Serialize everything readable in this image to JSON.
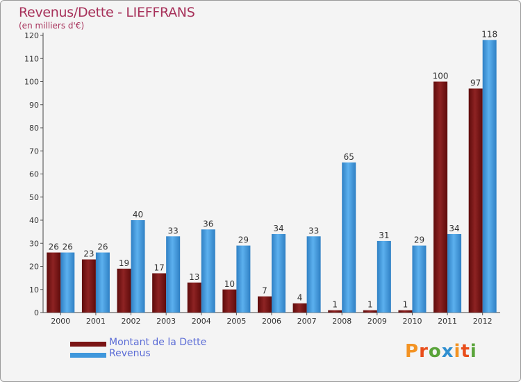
{
  "chart_data": {
    "type": "bar",
    "title": "Revenus/Dette - LIEFFRANS",
    "subtitle": "(en milliers d'€)",
    "categories": [
      "2000",
      "2001",
      "2002",
      "2003",
      "2004",
      "2005",
      "2006",
      "2007",
      "2008",
      "2009",
      "2010",
      "2011",
      "2012"
    ],
    "series": [
      {
        "name": "Montant de la Dette",
        "values": [
          26,
          23,
          19,
          17,
          13,
          10,
          7,
          4,
          1,
          1,
          1,
          100,
          97
        ],
        "color": "#7a1414"
      },
      {
        "name": "Revenus",
        "values": [
          26,
          26,
          40,
          33,
          36,
          29,
          34,
          33,
          65,
          31,
          29,
          34,
          118
        ],
        "color": "#3f97dc"
      }
    ],
    "ylim": [
      0,
      120
    ],
    "y_ticks": [
      0,
      10,
      20,
      30,
      40,
      50,
      60,
      70,
      80,
      90,
      100,
      110,
      120
    ],
    "grid": false,
    "legend_position": "bottom-left"
  },
  "brand": {
    "text": "Proxiti",
    "letter_colors": [
      "#f39323",
      "#e94e1b",
      "#5aa43a",
      "#2f8fd0",
      "#f39323",
      "#e94e1b",
      "#5aa43a"
    ]
  }
}
